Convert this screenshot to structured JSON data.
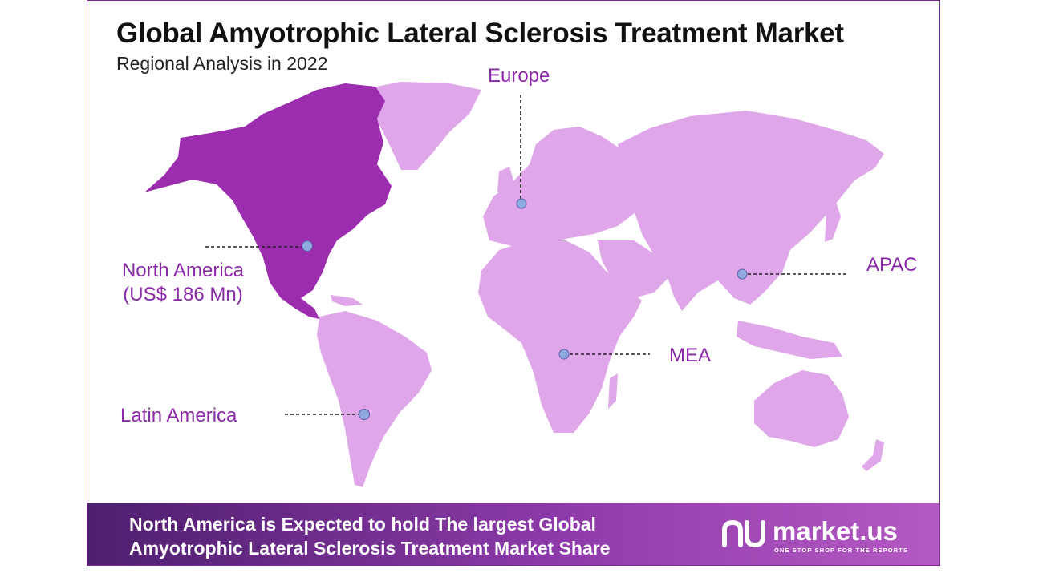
{
  "title": "Global Amyotrophic Lateral Sclerosis Treatment Market",
  "subtitle": "Regional Analysis in 2022",
  "regions": {
    "europe": "Europe",
    "north_america": "North America",
    "north_america_value": "(US$ 186 Mn)",
    "apac": "APAC",
    "mea": "MEA",
    "latin_america": "Latin America"
  },
  "colors": {
    "highlight": "#9b2dae",
    "land": "#dfa6ea",
    "label": "#8a2aa8",
    "marker": "#8fa8dd"
  },
  "footer": {
    "line1": "North America is Expected to hold The largest Global",
    "line2": "Amyotrophic Lateral Sclerosis Treatment Market  Share"
  },
  "brand": {
    "name": "market.us",
    "tagline": "ONE STOP SHOP FOR THE REPORTS"
  }
}
